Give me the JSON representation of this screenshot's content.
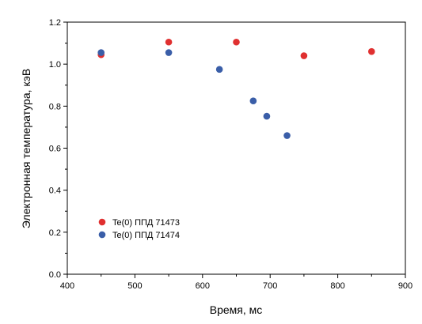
{
  "chart_data": {
    "type": "scatter",
    "xlabel": "Время, мс",
    "ylabel": "Электронная температура, кэВ",
    "xlim": [
      400,
      900
    ],
    "ylim": [
      0.0,
      1.2
    ],
    "xticks": [
      "400",
      "500",
      "600",
      "700",
      "800",
      "900"
    ],
    "yticks": [
      "0.0",
      "0.2",
      "0.4",
      "0.6",
      "0.8",
      "1.0",
      "1.2"
    ],
    "grid": false,
    "legend_position": "bottom-left",
    "series": [
      {
        "name": "Te(0) ППД  71473",
        "color": "#e03030",
        "x": [
          450,
          550,
          650,
          750,
          850
        ],
        "y": [
          1.045,
          1.105,
          1.105,
          1.04,
          1.06
        ]
      },
      {
        "name": "Te(0) ППД  71474",
        "color": "#3a5ea8",
        "x": [
          450,
          550,
          625,
          675,
          695,
          725
        ],
        "y": [
          1.055,
          1.055,
          0.975,
          0.825,
          0.752,
          0.66
        ]
      }
    ]
  }
}
